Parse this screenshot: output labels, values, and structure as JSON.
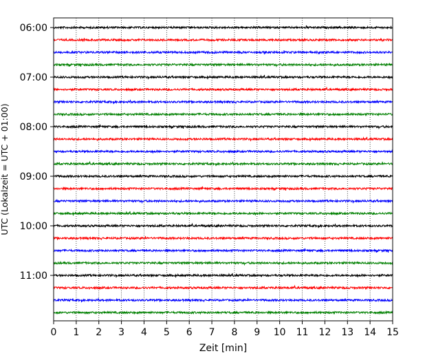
{
  "chart_data": {
    "type": "line",
    "title": "",
    "xlabel": "Zeit  [min]",
    "ylabel": "UTC (Lokalzeit = UTC + 01:00)",
    "xlim": [
      0,
      15
    ],
    "x_ticks": [
      "0",
      "1",
      "2",
      "3",
      "4",
      "5",
      "6",
      "7",
      "8",
      "9",
      "10",
      "11",
      "12",
      "13",
      "14",
      "15"
    ],
    "y_tick_labels": [
      "06:00",
      "07:00",
      "08:00",
      "09:00",
      "10:00",
      "11:00"
    ],
    "trace_interval_minutes": 15,
    "trace_start_times": [
      "06:00",
      "06:15",
      "06:30",
      "06:45",
      "07:00",
      "07:15",
      "07:30",
      "07:45",
      "08:00",
      "08:15",
      "08:30",
      "08:45",
      "09:00",
      "09:15",
      "09:30",
      "09:45",
      "10:00",
      "10:15",
      "10:30",
      "10:45",
      "11:00",
      "11:15",
      "11:30",
      "11:45"
    ],
    "trace_colors": [
      "#000000",
      "#ff0000",
      "#0000ff",
      "#008000"
    ],
    "grid": "vertical dotted at each minute",
    "legend": "none"
  }
}
